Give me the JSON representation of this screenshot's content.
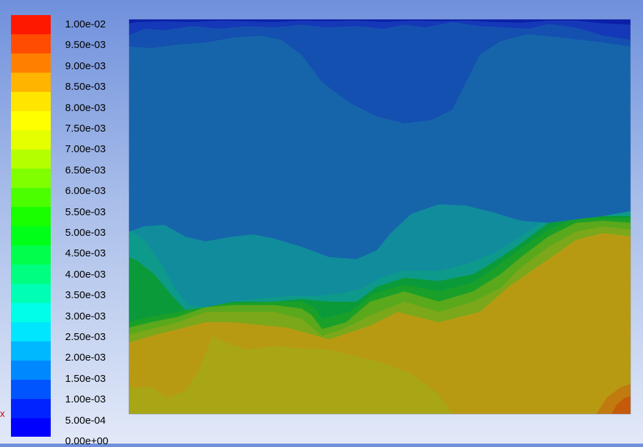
{
  "colorbar": {
    "colors": [
      "#0000ff",
      "#0023ff",
      "#0055ff",
      "#0088ff",
      "#00b8ff",
      "#00e6ff",
      "#00ffe6",
      "#00ffb4",
      "#00ff80",
      "#00ff4c",
      "#00ff18",
      "#18ff00",
      "#4cff00",
      "#80ff00",
      "#b4ff00",
      "#e6ff00",
      "#ffff00",
      "#ffe600",
      "#ffb400",
      "#ff8000",
      "#ff4c00",
      "#ff1800"
    ],
    "labels": [
      "1.00e-02",
      "9.50e-03",
      "9.00e-03",
      "8.50e-03",
      "8.00e-03",
      "7.50e-03",
      "7.00e-03",
      "6.50e-03",
      "6.00e-03",
      "5.50e-03",
      "5.00e-03",
      "4.50e-03",
      "4.00e-03",
      "3.50e-03",
      "3.00e-03",
      "2.50e-03",
      "2.00e-03",
      "1.50e-03",
      "1.00e-03",
      "5.00e-04",
      "0.00e+00"
    ]
  },
  "contour_colors": {
    "top_band": "#0a1fa8",
    "upper_band": "#1538b8",
    "dark_blue": "#1450b0",
    "blue": "#1665ab",
    "teal_blue": "#157aa8",
    "teal": "#118c9c",
    "teal_green": "#0e9a8a",
    "green_dark": "#0a9a3a",
    "green": "#1aa028",
    "green_olive": "#5aa81c",
    "olive_green": "#7aa81a",
    "olive": "#a8a614",
    "orange_olive": "#b89a12",
    "orange": "#c07a10",
    "red_orange": "#c45a0a"
  },
  "edge_mark": "x"
}
